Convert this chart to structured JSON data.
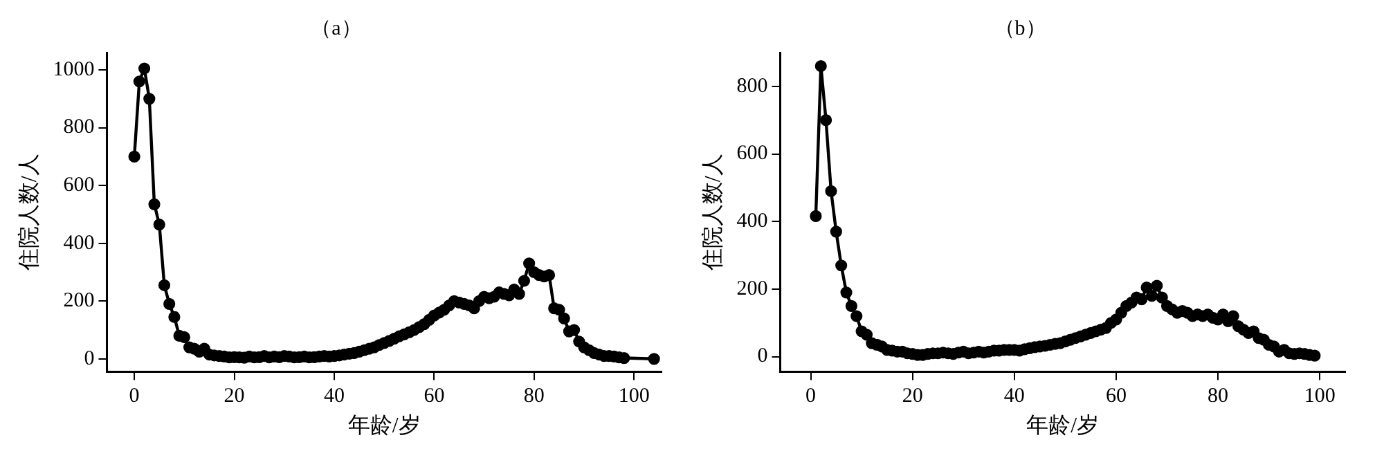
{
  "chart_data": [
    {
      "type": "line",
      "title": "（a）",
      "xlabel": "年龄/岁",
      "ylabel": "住院人数/人",
      "marker": "circle",
      "grid": false,
      "legend": false,
      "x": [
        0,
        1,
        2,
        3,
        4,
        5,
        6,
        7,
        8,
        9,
        10,
        11,
        12,
        13,
        14,
        15,
        16,
        17,
        18,
        19,
        20,
        21,
        22,
        23,
        24,
        25,
        26,
        27,
        28,
        29,
        30,
        31,
        32,
        33,
        34,
        35,
        36,
        37,
        38,
        39,
        40,
        41,
        42,
        43,
        44,
        45,
        46,
        47,
        48,
        49,
        50,
        51,
        52,
        53,
        54,
        55,
        56,
        57,
        58,
        59,
        60,
        61,
        62,
        63,
        64,
        65,
        66,
        67,
        68,
        69,
        70,
        71,
        72,
        73,
        74,
        75,
        76,
        77,
        78,
        79,
        80,
        81,
        82,
        83,
        84,
        85,
        86,
        87,
        88,
        89,
        90,
        91,
        92,
        93,
        94,
        95,
        96,
        97,
        98,
        104
      ],
      "series": [
        {
          "color": "#000000",
          "values": [
            700,
            960,
            1005,
            900,
            535,
            465,
            255,
            190,
            145,
            80,
            75,
            40,
            35,
            25,
            35,
            15,
            12,
            10,
            8,
            5,
            6,
            5,
            4,
            8,
            5,
            6,
            10,
            5,
            8,
            6,
            10,
            8,
            5,
            6,
            8,
            5,
            6,
            8,
            10,
            8,
            10,
            12,
            15,
            18,
            20,
            25,
            30,
            35,
            40,
            48,
            55,
            62,
            70,
            78,
            85,
            92,
            100,
            110,
            120,
            135,
            150,
            160,
            170,
            185,
            200,
            195,
            190,
            185,
            175,
            200,
            215,
            210,
            215,
            230,
            225,
            220,
            240,
            225,
            270,
            330,
            300,
            290,
            285,
            290,
            175,
            170,
            140,
            95,
            100,
            60,
            40,
            30,
            20,
            15,
            10,
            10,
            8,
            5,
            3,
            0
          ]
        }
      ],
      "xlim": [
        -5.5,
        105.5
      ],
      "xticks": [
        0,
        20,
        40,
        60,
        80,
        100
      ],
      "ylim": [
        -45,
        1060
      ],
      "yticks": [
        0,
        200,
        400,
        600,
        800,
        1000
      ]
    },
    {
      "type": "line",
      "title": "（b）",
      "xlabel": "年龄/岁",
      "ylabel": "住院人数/人",
      "marker": "circle",
      "grid": false,
      "legend": false,
      "x": [
        1,
        2,
        3,
        4,
        5,
        6,
        7,
        8,
        9,
        10,
        11,
        12,
        13,
        14,
        15,
        16,
        17,
        18,
        19,
        20,
        21,
        22,
        23,
        24,
        25,
        26,
        27,
        28,
        29,
        30,
        31,
        32,
        33,
        34,
        35,
        36,
        37,
        38,
        39,
        40,
        41,
        42,
        43,
        44,
        45,
        46,
        47,
        48,
        49,
        50,
        51,
        52,
        53,
        54,
        55,
        56,
        57,
        58,
        59,
        60,
        61,
        62,
        63,
        64,
        65,
        66,
        67,
        68,
        69,
        70,
        71,
        72,
        73,
        74,
        75,
        76,
        77,
        78,
        79,
        80,
        81,
        82,
        83,
        84,
        85,
        86,
        87,
        88,
        89,
        90,
        91,
        92,
        93,
        94,
        95,
        96,
        97,
        98,
        99
      ],
      "series": [
        {
          "color": "#000000",
          "values": [
            416,
            860,
            700,
            490,
            370,
            270,
            190,
            150,
            120,
            75,
            65,
            40,
            35,
            30,
            20,
            18,
            15,
            15,
            10,
            8,
            5,
            5,
            8,
            10,
            10,
            12,
            10,
            8,
            12,
            15,
            10,
            12,
            15,
            12,
            15,
            18,
            18,
            20,
            20,
            20,
            18,
            22,
            25,
            28,
            30,
            32,
            35,
            38,
            40,
            45,
            50,
            55,
            60,
            65,
            70,
            75,
            80,
            85,
            100,
            110,
            130,
            150,
            160,
            175,
            170,
            205,
            180,
            210,
            175,
            150,
            140,
            130,
            135,
            130,
            120,
            125,
            120,
            125,
            115,
            110,
            125,
            105,
            120,
            90,
            80,
            70,
            75,
            55,
            50,
            35,
            30,
            15,
            20,
            10,
            8,
            10,
            8,
            5,
            3
          ]
        }
      ],
      "xlim": [
        -6,
        105
      ],
      "xticks": [
        0,
        20,
        40,
        60,
        80,
        100
      ],
      "ylim": [
        -45,
        900
      ],
      "yticks": [
        0,
        200,
        400,
        600,
        800
      ]
    }
  ]
}
